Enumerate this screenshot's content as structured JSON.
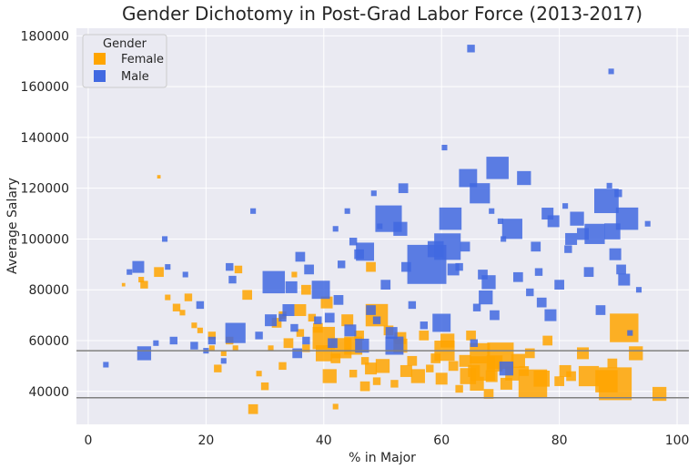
{
  "chart_data": {
    "type": "scatter",
    "title": "Gender Dichotomy in Post-Grad Labor Force (2013-2017)",
    "xlabel": "% in Major",
    "ylabel": "Average Salary",
    "xlim": [
      -2,
      102
    ],
    "ylim": [
      27000,
      183000
    ],
    "xticks": [
      0,
      20,
      40,
      60,
      80,
      100
    ],
    "yticks": [
      40000,
      60000,
      80000,
      100000,
      120000,
      140000,
      160000,
      180000
    ],
    "grid": true,
    "legend": {
      "title": "Gender",
      "placement": "top-left",
      "entries": [
        "Female",
        "Male"
      ]
    },
    "reference_lines": [
      56000,
      37500
    ],
    "series": [
      {
        "name": "Female",
        "color": "#FFA500",
        "points": [
          [
            12,
            124500,
            1
          ],
          [
            6,
            82000,
            1
          ],
          [
            9,
            84000,
            2
          ],
          [
            9.5,
            82000,
            3
          ],
          [
            12,
            87000,
            4
          ],
          [
            13.5,
            77000,
            2
          ],
          [
            15,
            73000,
            3
          ],
          [
            16,
            71000,
            2
          ],
          [
            17,
            77000,
            3
          ],
          [
            18,
            66000,
            2
          ],
          [
            19,
            64000,
            2
          ],
          [
            21,
            62000,
            3
          ],
          [
            21,
            57000,
            2
          ],
          [
            22,
            49000,
            3
          ],
          [
            23,
            55000,
            2
          ],
          [
            24,
            60000,
            3
          ],
          [
            25,
            57000,
            2
          ],
          [
            25.5,
            88000,
            3
          ],
          [
            27,
            78000,
            4
          ],
          [
            28,
            33000,
            4
          ],
          [
            29,
            47000,
            2
          ],
          [
            30,
            42000,
            3
          ],
          [
            31,
            57000,
            2
          ],
          [
            32,
            67000,
            4
          ],
          [
            33,
            70000,
            3
          ],
          [
            33,
            50000,
            3
          ],
          [
            34,
            59000,
            4
          ],
          [
            35,
            86000,
            2
          ],
          [
            36,
            72000,
            5
          ],
          [
            36,
            63000,
            3
          ],
          [
            37,
            80000,
            4
          ],
          [
            37,
            57000,
            3
          ],
          [
            38,
            69000,
            3
          ],
          [
            39,
            65000,
            4
          ],
          [
            40,
            61000,
            10
          ],
          [
            40,
            55000,
            7
          ],
          [
            40.5,
            75000,
            5
          ],
          [
            41,
            46000,
            6
          ],
          [
            42,
            34000,
            2
          ],
          [
            42,
            53000,
            4
          ],
          [
            43,
            57000,
            9
          ],
          [
            44,
            68000,
            5
          ],
          [
            45,
            47000,
            3
          ],
          [
            45,
            58000,
            8
          ],
          [
            46,
            62000,
            4
          ],
          [
            47,
            52000,
            3
          ],
          [
            47,
            42000,
            4
          ],
          [
            48,
            89000,
            4
          ],
          [
            48,
            49000,
            5
          ],
          [
            49,
            44000,
            3
          ],
          [
            49,
            70000,
            10
          ],
          [
            50,
            50000,
            6
          ],
          [
            51,
            64000,
            4
          ],
          [
            52,
            43000,
            3
          ],
          [
            53,
            61000,
            5
          ],
          [
            53,
            58000,
            6
          ],
          [
            54,
            48000,
            5
          ],
          [
            55,
            52000,
            4
          ],
          [
            56,
            46000,
            6
          ],
          [
            57,
            62000,
            4
          ],
          [
            58,
            49000,
            3
          ],
          [
            59,
            53000,
            4
          ],
          [
            60,
            45000,
            5
          ],
          [
            60.5,
            56000,
            9
          ],
          [
            61,
            60000,
            6
          ],
          [
            62,
            50000,
            4
          ],
          [
            63,
            41000,
            3
          ],
          [
            64,
            52000,
            5
          ],
          [
            64.5,
            46000,
            7
          ],
          [
            65,
            62000,
            4
          ],
          [
            65.5,
            48000,
            5
          ],
          [
            66,
            43000,
            6
          ],
          [
            66.5,
            55000,
            9
          ],
          [
            67,
            49000,
            11
          ],
          [
            68,
            39000,
            4
          ],
          [
            68.5,
            46000,
            5
          ],
          [
            69,
            51000,
            7
          ],
          [
            70,
            54000,
            12
          ],
          [
            71,
            43000,
            5
          ],
          [
            72,
            47000,
            6
          ],
          [
            73,
            52000,
            6
          ],
          [
            74,
            48000,
            4
          ],
          [
            75,
            55000,
            4
          ],
          [
            75.5,
            43000,
            13
          ],
          [
            77,
            45000,
            7
          ],
          [
            78,
            60000,
            4
          ],
          [
            80,
            44000,
            4
          ],
          [
            81,
            48000,
            5
          ],
          [
            82,
            46000,
            4
          ],
          [
            84,
            55000,
            5
          ],
          [
            85,
            46000,
            9
          ],
          [
            88,
            44000,
            10
          ],
          [
            89,
            51000,
            4
          ],
          [
            89.5,
            43000,
            15
          ],
          [
            91,
            65000,
            13
          ],
          [
            93,
            55000,
            6
          ],
          [
            97,
            39000,
            6
          ]
        ]
      },
      {
        "name": "Male",
        "color": "#4169E1",
        "points": [
          [
            3,
            50500,
            2
          ],
          [
            7,
            87000,
            2
          ],
          [
            8.5,
            89000,
            5
          ],
          [
            9.5,
            55000,
            6
          ],
          [
            11.5,
            59000,
            2
          ],
          [
            13,
            100000,
            2
          ],
          [
            13.5,
            89000,
            2
          ],
          [
            14.5,
            60000,
            3
          ],
          [
            16.5,
            86000,
            2
          ],
          [
            18,
            58000,
            3
          ],
          [
            19,
            74000,
            3
          ],
          [
            20,
            56000,
            2
          ],
          [
            21,
            60000,
            3
          ],
          [
            23,
            52000,
            2
          ],
          [
            24,
            89000,
            3
          ],
          [
            24.5,
            84000,
            3
          ],
          [
            25,
            63000,
            9
          ],
          [
            28,
            111000,
            2
          ],
          [
            29,
            62000,
            3
          ],
          [
            31,
            68000,
            5
          ],
          [
            31.5,
            83000,
            10
          ],
          [
            33,
            69000,
            3
          ],
          [
            34,
            72000,
            5
          ],
          [
            34.5,
            81000,
            5
          ],
          [
            35,
            65000,
            3
          ],
          [
            35.5,
            55000,
            4
          ],
          [
            36,
            93000,
            4
          ],
          [
            37,
            60000,
            3
          ],
          [
            37.5,
            88000,
            4
          ],
          [
            39,
            68000,
            3
          ],
          [
            39.5,
            80000,
            8
          ],
          [
            41,
            69000,
            4
          ],
          [
            41.5,
            59000,
            4
          ],
          [
            42,
            104000,
            2
          ],
          [
            42.5,
            76000,
            4
          ],
          [
            43,
            90000,
            3
          ],
          [
            44,
            111000,
            2
          ],
          [
            44.5,
            64000,
            5
          ],
          [
            45,
            99000,
            3
          ],
          [
            46,
            94000,
            4
          ],
          [
            46.5,
            58000,
            6
          ],
          [
            47,
            95000,
            8
          ],
          [
            48,
            72000,
            4
          ],
          [
            48.5,
            118000,
            2
          ],
          [
            49,
            68000,
            3
          ],
          [
            49.5,
            105000,
            2
          ],
          [
            50.5,
            82000,
            4
          ],
          [
            51,
            108000,
            12
          ],
          [
            51.5,
            63000,
            5
          ],
          [
            52,
            58000,
            8
          ],
          [
            53,
            104000,
            6
          ],
          [
            53.5,
            120000,
            4
          ],
          [
            54,
            89000,
            4
          ],
          [
            55,
            74000,
            3
          ],
          [
            57,
            66000,
            3
          ],
          [
            57.5,
            90000,
            18
          ],
          [
            59,
            96000,
            7
          ],
          [
            60,
            67000,
            8
          ],
          [
            60.5,
            136000,
            2
          ],
          [
            61,
            97000,
            12
          ],
          [
            61.5,
            108000,
            10
          ],
          [
            62,
            88000,
            5
          ],
          [
            63,
            89000,
            3
          ],
          [
            64,
            97000,
            4
          ],
          [
            64.5,
            124000,
            8
          ],
          [
            65,
            175000,
            3
          ],
          [
            65.5,
            59000,
            3
          ],
          [
            66,
            73000,
            3
          ],
          [
            66.5,
            118000,
            9
          ],
          [
            67,
            86000,
            4
          ],
          [
            67.5,
            77000,
            6
          ],
          [
            68,
            83000,
            6
          ],
          [
            68.5,
            111000,
            2
          ],
          [
            69,
            70000,
            4
          ],
          [
            69.5,
            128000,
            10
          ],
          [
            70,
            107000,
            2
          ],
          [
            70.5,
            100000,
            2
          ],
          [
            71,
            49000,
            6
          ],
          [
            72,
            104000,
            9
          ],
          [
            73,
            85000,
            4
          ],
          [
            74,
            124000,
            6
          ],
          [
            75,
            79000,
            3
          ],
          [
            76,
            97000,
            4
          ],
          [
            76.5,
            87000,
            3
          ],
          [
            77,
            75000,
            4
          ],
          [
            78,
            110000,
            5
          ],
          [
            78.5,
            70000,
            5
          ],
          [
            79,
            107000,
            5
          ],
          [
            80,
            82000,
            4
          ],
          [
            81,
            113000,
            2
          ],
          [
            81.5,
            96000,
            3
          ],
          [
            82,
            100000,
            5
          ],
          [
            83,
            108000,
            6
          ],
          [
            84,
            102000,
            5
          ],
          [
            85,
            87000,
            4
          ],
          [
            86,
            102000,
            9
          ],
          [
            87,
            72000,
            4
          ],
          [
            88,
            115000,
            11
          ],
          [
            88.5,
            121000,
            2
          ],
          [
            88.8,
            166000,
            2
          ],
          [
            89,
            103000,
            7
          ],
          [
            89.5,
            94000,
            5
          ],
          [
            90,
            118000,
            3
          ],
          [
            90.5,
            88000,
            4
          ],
          [
            91,
            84000,
            5
          ],
          [
            91.5,
            108000,
            10
          ],
          [
            92,
            63000,
            2
          ],
          [
            93.5,
            80000,
            2
          ],
          [
            95,
            106000,
            2
          ]
        ]
      }
    ]
  }
}
